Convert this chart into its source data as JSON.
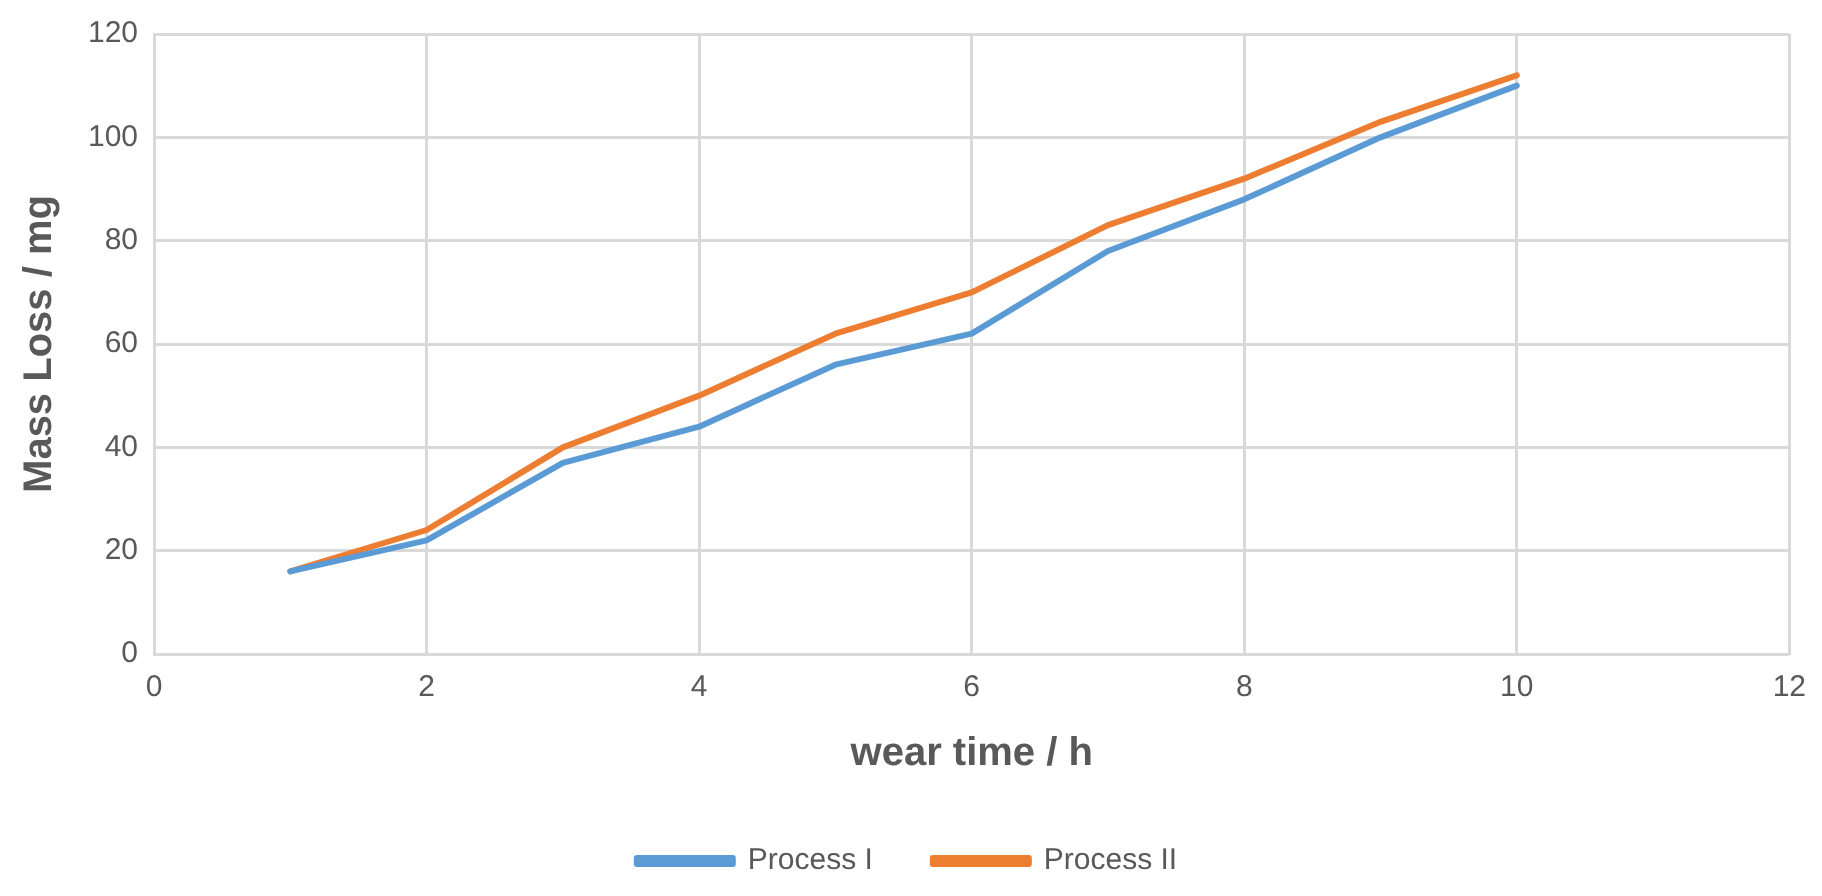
{
  "chart_data": {
    "type": "line",
    "xlabel": "wear time / h",
    "ylabel": "Mass Loss / mg",
    "x": [
      1,
      2,
      3,
      4,
      5,
      6,
      7,
      8,
      9,
      10
    ],
    "series": [
      {
        "name": "Process I",
        "color": "#5b9bd5",
        "values": [
          16,
          22,
          37,
          44,
          56,
          62,
          78,
          88,
          100,
          110
        ]
      },
      {
        "name": "Process II",
        "color": "#ed7d31",
        "values": [
          16,
          24,
          40,
          50,
          62,
          70,
          83,
          92,
          103,
          112
        ]
      }
    ],
    "xlim": [
      0,
      12
    ],
    "xticks": [
      0,
      2,
      4,
      6,
      8,
      10,
      12
    ],
    "ylim": [
      0,
      120
    ],
    "yticks": [
      0,
      20,
      40,
      60,
      80,
      100,
      120
    ],
    "grid": true,
    "legend": "bottom",
    "marker": "none",
    "line_style": "solid"
  }
}
